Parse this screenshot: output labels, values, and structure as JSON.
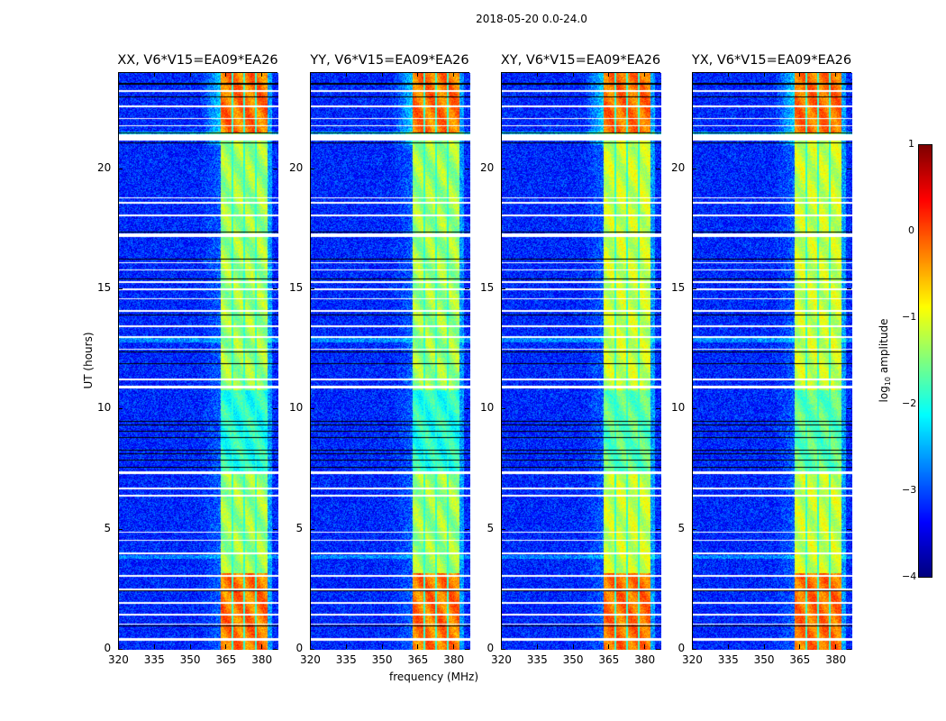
{
  "figure_title": "2018-05-20 0.0-24.0",
  "xlabel": "frequency (MHz)",
  "ylabel": "UT (hours)",
  "colorbar": {
    "label_main": "log",
    "label_sub": "10",
    "label_tail": " amplitude",
    "range": [
      -4,
      1
    ],
    "ticks": [
      "1",
      "0",
      "−1",
      "−2",
      "−3",
      "−4"
    ],
    "tick_values": [
      1,
      0,
      -1,
      -2,
      -3,
      -4
    ],
    "colormap": "jet"
  },
  "chart_data": [
    {
      "type": "heatmap",
      "title": "XX, V6*V15=EA09*EA26",
      "xlim": [
        320,
        386.7
      ],
      "ylim": [
        0,
        24
      ],
      "xticks": [
        320,
        335,
        350,
        365,
        380
      ],
      "yticks": [
        0,
        5,
        10,
        15,
        20
      ],
      "show_yticks": true
    },
    {
      "type": "heatmap",
      "title": "YY, V6*V15=EA09*EA26",
      "xlim": [
        320,
        386.7
      ],
      "ylim": [
        0,
        24
      ],
      "xticks": [
        320,
        335,
        350,
        365,
        380
      ],
      "yticks": [
        0,
        5,
        10,
        15,
        20
      ],
      "show_yticks": true
    },
    {
      "type": "heatmap",
      "title": "XY, V6*V15=EA09*EA26",
      "xlim": [
        320,
        386.7
      ],
      "ylim": [
        0,
        24
      ],
      "xticks": [
        320,
        335,
        350,
        365,
        380
      ],
      "yticks": [
        0,
        5,
        10,
        15,
        20
      ],
      "show_yticks": true
    },
    {
      "type": "heatmap",
      "title": "YX, V6*V15=EA09*EA26",
      "xlim": [
        320,
        386.7
      ],
      "ylim": [
        0,
        24
      ],
      "xticks": [
        320,
        335,
        350,
        365,
        380
      ],
      "yticks": [
        0,
        5,
        10,
        15,
        20
      ],
      "show_yticks": true
    }
  ],
  "field": {
    "background_log_amp": -3.2,
    "band_mhz": [
      362.5,
      382
    ],
    "band_gaps_mhz": [
      367.3,
      372.2,
      377.0
    ],
    "band_strong_hours": [
      [
        0,
        3.2
      ],
      [
        21.5,
        24
      ]
    ],
    "cross_pol_scale": 0.85,
    "flagged_white_hours": [
      [
        0.4,
        0.5
      ],
      [
        1.05,
        1.12
      ],
      [
        1.45,
        1.52
      ],
      [
        1.95,
        2.0
      ],
      [
        2.5,
        2.55
      ],
      [
        3.05,
        3.12
      ],
      [
        4.0,
        4.05
      ],
      [
        4.55,
        4.6
      ],
      [
        4.9,
        4.95
      ],
      [
        6.4,
        6.47
      ],
      [
        6.7,
        6.76
      ],
      [
        7.35,
        7.45
      ],
      [
        10.9,
        11.0
      ],
      [
        11.25,
        11.3
      ],
      [
        12.5,
        12.55
      ],
      [
        13.0,
        13.06
      ],
      [
        13.45,
        13.5
      ],
      [
        14.1,
        14.15
      ],
      [
        14.6,
        14.66
      ],
      [
        15.0,
        15.05
      ],
      [
        15.3,
        15.37
      ],
      [
        15.8,
        15.85
      ],
      [
        16.1,
        16.15
      ],
      [
        17.2,
        17.35
      ],
      [
        18.05,
        18.12
      ],
      [
        18.6,
        18.66
      ],
      [
        18.8,
        18.86
      ],
      [
        21.2,
        21.45
      ],
      [
        21.8,
        21.85
      ],
      [
        22.1,
        22.15
      ],
      [
        22.6,
        22.66
      ],
      [
        23.25,
        23.3
      ]
    ],
    "flagged_black_hours": [
      [
        1.0,
        1.04
      ],
      [
        2.45,
        2.49
      ],
      [
        7.6,
        7.63
      ],
      [
        7.9,
        7.93
      ],
      [
        8.15,
        8.18
      ],
      [
        8.3,
        8.33
      ],
      [
        8.55,
        8.58
      ],
      [
        8.85,
        8.88
      ],
      [
        9.1,
        9.13
      ],
      [
        9.35,
        9.38
      ],
      [
        9.5,
        9.53
      ],
      [
        11.9,
        11.93
      ],
      [
        12.15,
        12.18
      ],
      [
        12.4,
        12.43
      ],
      [
        13.95,
        13.98
      ],
      [
        15.45,
        15.48
      ],
      [
        16.25,
        16.28
      ],
      [
        17.38,
        17.41
      ],
      [
        21.1,
        21.14
      ],
      [
        21.5,
        21.54
      ],
      [
        23.0,
        23.04
      ],
      [
        23.55,
        23.6
      ]
    ]
  }
}
